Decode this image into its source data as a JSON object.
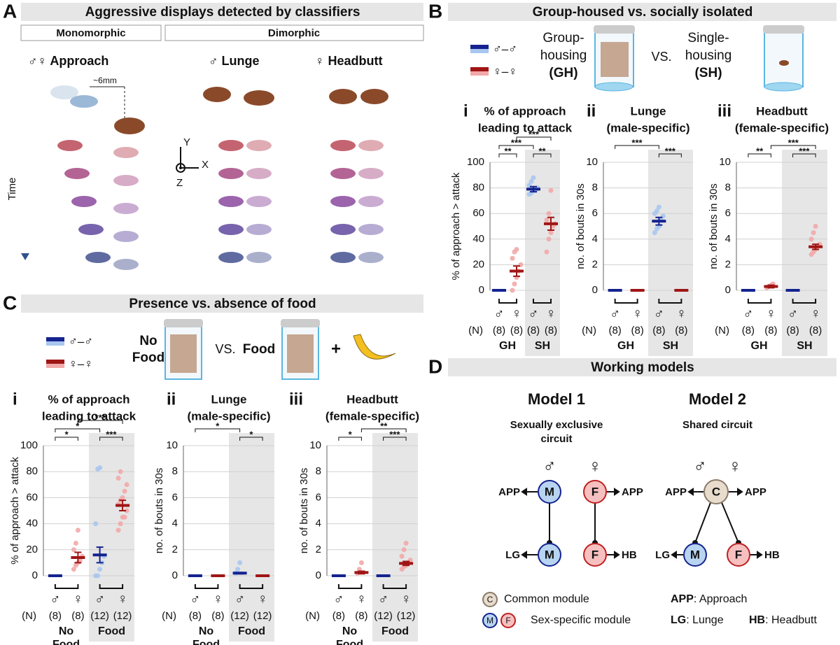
{
  "panel_letters": [
    "A",
    "B",
    "C",
    "D"
  ],
  "panel_a": {
    "title": "Aggressive displays detected by classifiers",
    "monomorphic": "Monomorphic",
    "dimorphic": "Dimorphic",
    "behaviors": [
      "♂♀ Approach",
      "♂ Lunge",
      "♀ Headbutt"
    ],
    "distance": "~6mm",
    "time": "Time",
    "axes": [
      "Y",
      "X",
      "Z"
    ]
  },
  "panel_b": {
    "title": "Group-housed vs. socially isolated",
    "legend": [
      "♂–♂",
      "♀–♀"
    ],
    "group_housing": [
      "Group-",
      "housing",
      "(GH)"
    ],
    "vs": "VS.",
    "single_housing": [
      "Single-",
      "housing",
      "(SH)"
    ]
  },
  "panel_c": {
    "title": "Presence vs. absence of food",
    "legend": [
      "♂–♂",
      "♀–♀"
    ],
    "no_food": [
      "No",
      "Food"
    ],
    "vs": "VS.",
    "food": "Food",
    "plus": "+"
  },
  "panel_d": {
    "title": "Working models",
    "models": [
      {
        "title": "Model 1",
        "subtitle": [
          "Sexually exclusive",
          "circuit"
        ]
      },
      {
        "title": "Model 2",
        "subtitle": [
          "Shared circuit"
        ]
      }
    ],
    "sexes": [
      "♂",
      "♀"
    ],
    "modules": {
      "male": "M",
      "female": "F",
      "common": "C"
    },
    "outputs": {
      "approach": "APP",
      "lunge": "LG",
      "headbutt": "HB"
    },
    "legend": [
      "Common module",
      "Sex-specific module"
    ],
    "abbreviations": [
      {
        "abbr": "APP",
        "text": ": Approach"
      },
      {
        "abbr": "LG",
        "text": ": Lunge"
      },
      {
        "abbr": "HB",
        "text": ": Headbutt"
      }
    ]
  },
  "chart_data": [
    {
      "type": "dot",
      "numeral": "i",
      "title": [
        "% of approach",
        "leading to attack"
      ],
      "ylabel": "% of approach > attack",
      "categories": [
        "♂",
        "♀",
        "♂",
        "♀"
      ],
      "n_label": "(N)",
      "n": [
        "(8)",
        "(8)",
        "(8)",
        "(8)"
      ],
      "groups": [
        [
          "GH"
        ],
        [
          "SH"
        ]
      ],
      "values": [
        0,
        15,
        79,
        52
      ],
      "errors": [
        0,
        4,
        2,
        5
      ],
      "points": [
        [],
        [
          0,
          5,
          10,
          15,
          20,
          25,
          30,
          32
        ],
        [
          75,
          76,
          78,
          78,
          80,
          82,
          85,
          88
        ],
        [
          30,
          40,
          45,
          50,
          52,
          55,
          60,
          78
        ]
      ],
      "colors": [
        "#14238f",
        "#a01515",
        "#14238f",
        "#a01515"
      ],
      "point_colors": [
        "#a9c6f0",
        "#f2a9a9",
        "#a9c6f0",
        "#f2a9a9"
      ],
      "significance": [
        "**",
        "***",
        "***",
        "**"
      ],
      "ylim": [
        0,
        100
      ],
      "yticks": [
        0,
        20,
        40,
        60,
        80,
        100
      ],
      "grid": true
    },
    {
      "type": "dot",
      "numeral": "ii",
      "title": [
        "Lunge",
        "(male-specific)"
      ],
      "ylabel": "no. of bouts in 30s",
      "categories": [
        "♂",
        "♀",
        "♂",
        "♀"
      ],
      "n_label": "(N)",
      "n": [
        "(8)",
        "(8)",
        "(8)",
        "(8)"
      ],
      "groups": [
        [
          "GH"
        ],
        [
          "SH"
        ]
      ],
      "values": [
        0,
        0,
        5.4,
        0
      ],
      "errors": [
        0,
        0,
        0.3,
        0
      ],
      "points": [
        [],
        [],
        [
          4.5,
          4.8,
          5,
          5.5,
          5.8,
          6,
          6.2,
          6.5
        ],
        []
      ],
      "colors": [
        "#14238f",
        "#a01515",
        "#14238f",
        "#a01515"
      ],
      "point_colors": [
        "#a9c6f0",
        "#f2a9a9",
        "#a9c6f0",
        "#f2a9a9"
      ],
      "significance": [
        "***",
        "***"
      ],
      "ylim": [
        0,
        10
      ],
      "yticks": [
        0,
        2,
        4,
        6,
        8,
        10
      ],
      "grid": true
    },
    {
      "type": "dot",
      "numeral": "iii",
      "title": [
        "Headbutt",
        "(female-specific)"
      ],
      "ylabel": "no. of bouts in 30s",
      "categories": [
        "♂",
        "♀",
        "♂",
        "♀"
      ],
      "n_label": "(N)",
      "n": [
        "(8)",
        "(8)",
        "(8)",
        "(8)"
      ],
      "groups": [
        [
          "GH"
        ],
        [
          "SH"
        ]
      ],
      "values": [
        0,
        0.3,
        0,
        3.4
      ],
      "errors": [
        0,
        0.1,
        0,
        0.2
      ],
      "points": [
        [],
        [
          0.2,
          0.3,
          0.4,
          0.5
        ],
        [],
        [
          2.8,
          3,
          3.2,
          3.5,
          3.6,
          4,
          4.5,
          5
        ]
      ],
      "colors": [
        "#14238f",
        "#a01515",
        "#14238f",
        "#a01515"
      ],
      "point_colors": [
        "#a9c6f0",
        "#f2a9a9",
        "#a9c6f0",
        "#f2a9a9"
      ],
      "significance": [
        "**",
        "***",
        "***"
      ],
      "ylim": [
        0,
        10
      ],
      "yticks": [
        0,
        2,
        4,
        6,
        8,
        10
      ],
      "grid": true
    },
    {
      "type": "dot",
      "numeral": "i",
      "title": [
        "% of approach",
        "leading to attack"
      ],
      "ylabel": "% of approach > attack",
      "categories": [
        "♂",
        "♀",
        "♂",
        "♀"
      ],
      "n_label": "(N)",
      "n": [
        "(8)",
        "(8)",
        "(12)",
        "(12)"
      ],
      "groups": [
        [
          "No",
          "Food"
        ],
        [
          "Food"
        ]
      ],
      "values": [
        0,
        14,
        16,
        54
      ],
      "errors": [
        0,
        4,
        6,
        4
      ],
      "points": [
        [],
        [
          5,
          8,
          10,
          12,
          15,
          20,
          25,
          35
        ],
        [
          0,
          0,
          5,
          10,
          15,
          40,
          82,
          83
        ],
        [
          35,
          40,
          45,
          45,
          50,
          55,
          58,
          60,
          65,
          70,
          75,
          80
        ]
      ],
      "colors": [
        "#14238f",
        "#a01515",
        "#14238f",
        "#a01515"
      ],
      "point_colors": [
        "#a9c6f0",
        "#f2a9a9",
        "#a9c6f0",
        "#f2a9a9"
      ],
      "significance": [
        "*",
        "*",
        "***",
        "***"
      ],
      "ylim": [
        0,
        100
      ],
      "yticks": [
        0,
        20,
        40,
        60,
        80,
        100
      ],
      "grid": true
    },
    {
      "type": "dot",
      "numeral": "ii",
      "title": [
        "Lunge",
        "(male-specific)"
      ],
      "ylabel": "no. of bouts in 30s",
      "categories": [
        "♂",
        "♀",
        "♂",
        "♀"
      ],
      "n_label": "(N)",
      "n": [
        "(8)",
        "(8)",
        "(12)",
        "(12)"
      ],
      "groups": [
        [
          "No",
          "Food"
        ],
        [
          "Food"
        ]
      ],
      "values": [
        0,
        0,
        0.2,
        0
      ],
      "errors": [
        0,
        0,
        0.05,
        0
      ],
      "points": [
        [],
        [],
        [
          0.2,
          0.5,
          1
        ],
        []
      ],
      "colors": [
        "#14238f",
        "#a01515",
        "#14238f",
        "#a01515"
      ],
      "point_colors": [
        "#a9c6f0",
        "#f2a9a9",
        "#a9c6f0",
        "#f2a9a9"
      ],
      "significance": [
        "*",
        "*"
      ],
      "ylim": [
        0,
        10
      ],
      "yticks": [
        0,
        2,
        4,
        6,
        8,
        10
      ],
      "grid": true
    },
    {
      "type": "dot",
      "numeral": "iii",
      "title": [
        "Headbutt",
        "(female-specific)"
      ],
      "ylabel": "no. of bouts in 30s",
      "categories": [
        "♂",
        "♀",
        "♂",
        "♀"
      ],
      "n_label": "(N)",
      "n": [
        "(8)",
        "(8)",
        "(12)",
        "(12)"
      ],
      "groups": [
        [
          "No",
          "Food"
        ],
        [
          "Food"
        ]
      ],
      "values": [
        0,
        0.25,
        0,
        0.95
      ],
      "errors": [
        0,
        0.1,
        0,
        0.15
      ],
      "points": [
        [],
        [
          0.2,
          0.5,
          1
        ],
        [],
        [
          0.5,
          0.7,
          0.8,
          1,
          1.2,
          1.5,
          2,
          2.5
        ]
      ],
      "colors": [
        "#14238f",
        "#a01515",
        "#14238f",
        "#a01515"
      ],
      "point_colors": [
        "#a9c6f0",
        "#f2a9a9",
        "#a9c6f0",
        "#f2a9a9"
      ],
      "significance": [
        "*",
        "**",
        "***"
      ],
      "ylim": [
        0,
        10
      ],
      "yticks": [
        0,
        2,
        4,
        6,
        8,
        10
      ],
      "grid": true
    }
  ]
}
